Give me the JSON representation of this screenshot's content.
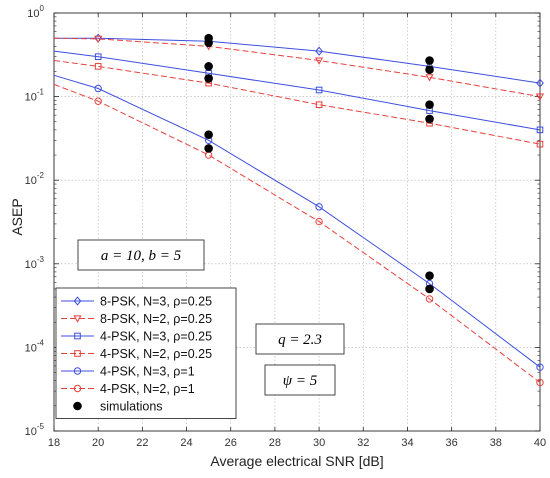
{
  "chart_data": {
    "type": "line",
    "xlabel": "Average electrical SNR [dB]",
    "ylabel": "ASEP",
    "xlim": [
      18,
      40
    ],
    "ylim": [
      1e-05,
      1
    ],
    "yscale": "log",
    "grid": true,
    "x_ticks": [
      "18",
      "20",
      "22",
      "24",
      "26",
      "28",
      "30",
      "32",
      "34",
      "36",
      "38",
      "40"
    ],
    "y_ticks": [
      {
        "base": "10",
        "exp": "0"
      },
      {
        "base": "10",
        "exp": "-1"
      },
      {
        "base": "10",
        "exp": "-2"
      },
      {
        "base": "10",
        "exp": "-3"
      },
      {
        "base": "10",
        "exp": "-4"
      },
      {
        "base": "10",
        "exp": "-5"
      }
    ],
    "legend_position": "bottom-left",
    "series": [
      {
        "name": "8-PSK, N=3, ρ=0.25",
        "color": "#3d4fe0",
        "dash": "solid",
        "marker": "diamond",
        "x": [
          18,
          20,
          25,
          30,
          35,
          40
        ],
        "y": [
          0.5,
          0.5,
          0.46,
          0.35,
          0.23,
          0.145
        ]
      },
      {
        "name": "8-PSK, N=2, ρ=0.25",
        "color": "#e8413c",
        "dash": "dashed",
        "marker": "triangle-down",
        "x": [
          18,
          20,
          25,
          30,
          35,
          40
        ],
        "y": [
          0.5,
          0.49,
          0.4,
          0.27,
          0.17,
          0.1
        ]
      },
      {
        "name": "4-PSK, N=3, ρ=0.25",
        "color": "#3d4fe0",
        "dash": "solid",
        "marker": "square",
        "x": [
          18,
          20,
          25,
          30,
          35,
          40
        ],
        "y": [
          0.35,
          0.3,
          0.19,
          0.12,
          0.068,
          0.04
        ]
      },
      {
        "name": "4-PSK, N=2, ρ=0.25",
        "color": "#e8413c",
        "dash": "dashed",
        "marker": "square",
        "x": [
          18,
          20,
          25,
          30,
          35,
          40
        ],
        "y": [
          0.27,
          0.23,
          0.145,
          0.08,
          0.048,
          0.027
        ]
      },
      {
        "name": "4-PSK, N=3, ρ=1",
        "color": "#3d4fe0",
        "dash": "solid",
        "marker": "circle",
        "x": [
          18,
          20,
          25,
          30,
          35,
          40
        ],
        "y": [
          0.18,
          0.125,
          0.03,
          0.0048,
          0.00058,
          5.8e-05
        ]
      },
      {
        "name": "4-PSK, N=2, ρ=1",
        "color": "#e8413c",
        "dash": "dashed",
        "marker": "circle",
        "x": [
          18,
          20,
          25,
          30,
          35,
          40
        ],
        "y": [
          0.14,
          0.088,
          0.02,
          0.0032,
          0.00038,
          3.8e-05
        ]
      }
    ],
    "simulations": {
      "name": "simulations",
      "color": "#000000",
      "x": [
        25,
        25,
        25,
        25,
        25,
        25,
        35,
        35,
        35,
        35,
        35,
        35
      ],
      "y": [
        0.5,
        0.44,
        0.23,
        0.165,
        0.035,
        0.024,
        0.27,
        0.21,
        0.08,
        0.054,
        0.00072,
        0.0005
      ]
    },
    "annotations": [
      {
        "text": "a = 10, b = 5"
      },
      {
        "text": "q = 2.3"
      },
      {
        "text": "ψ = 5"
      }
    ]
  }
}
